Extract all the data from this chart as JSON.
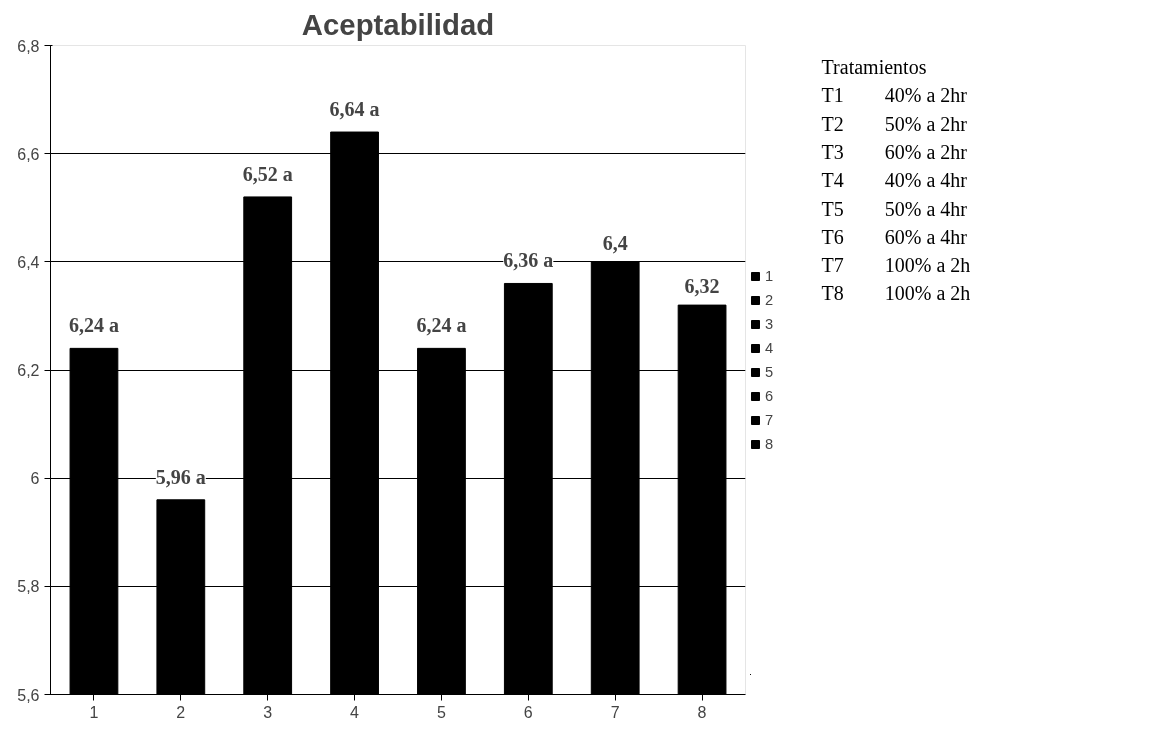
{
  "chart_data": {
    "type": "bar",
    "title": "Aceptabilidad",
    "categories": [
      "1",
      "2",
      "3",
      "4",
      "5",
      "6",
      "7",
      "8"
    ],
    "series": [
      {
        "name": "1",
        "color": "#000000",
        "values": [
          6.24,
          null,
          null,
          null,
          null,
          null,
          null,
          null
        ],
        "value_labels": [
          "6,24 a",
          null,
          null,
          null,
          null,
          null,
          null,
          null
        ]
      },
      {
        "name": "2",
        "color": "#000000",
        "values": [
          null,
          5.96,
          null,
          null,
          null,
          null,
          null,
          null
        ],
        "value_labels": [
          null,
          "5,96 a",
          null,
          null,
          null,
          null,
          null,
          null
        ]
      },
      {
        "name": "3",
        "color": "#000000",
        "values": [
          null,
          null,
          6.52,
          null,
          null,
          null,
          null,
          null
        ],
        "value_labels": [
          null,
          null,
          "6,52 a",
          null,
          null,
          null,
          null,
          null
        ]
      },
      {
        "name": "4",
        "color": "#000000",
        "values": [
          null,
          null,
          null,
          6.64,
          null,
          null,
          null,
          null
        ],
        "value_labels": [
          null,
          null,
          null,
          "6,64 a",
          null,
          null,
          null,
          null
        ]
      },
      {
        "name": "5",
        "color": "#000000",
        "values": [
          null,
          null,
          null,
          null,
          6.24,
          null,
          null,
          null
        ],
        "value_labels": [
          null,
          null,
          null,
          null,
          "6,24 a",
          null,
          null,
          null
        ]
      },
      {
        "name": "6",
        "color": "#000000",
        "values": [
          null,
          null,
          null,
          null,
          null,
          6.36,
          null,
          null
        ],
        "value_labels": [
          null,
          null,
          null,
          null,
          null,
          "6,36 a",
          null,
          null
        ]
      },
      {
        "name": "7",
        "color": "#000000",
        "values": [
          null,
          null,
          null,
          null,
          null,
          null,
          6.4,
          null
        ],
        "value_labels": [
          null,
          null,
          null,
          null,
          null,
          null,
          "6,4",
          null
        ]
      },
      {
        "name": "8",
        "color": "#000000",
        "values": [
          null,
          null,
          null,
          null,
          null,
          null,
          null,
          6.32
        ],
        "value_labels": [
          null,
          null,
          null,
          null,
          null,
          null,
          null,
          "6,32"
        ]
      }
    ],
    "ylim": [
      5.6,
      6.8
    ],
    "yticks": [
      {
        "value": 5.6,
        "label": "5,6"
      },
      {
        "value": 5.8,
        "label": "5,8"
      },
      6,
      {
        "value": 6.2,
        "label": "6,2"
      },
      {
        "value": 6.4,
        "label": "6,4"
      },
      {
        "value": 6.6,
        "label": "6,6"
      },
      {
        "value": 6.8,
        "label": "6,8"
      }
    ],
    "grid": "y",
    "legend": "right",
    "annotations": [
      "Tratamientos",
      "T1",
      "40% a 2hr",
      "T2",
      "50% a 2hr",
      "T3",
      "60% a 2hr",
      "T4",
      "40% a 4hr",
      "T5",
      "50% a 4hr",
      "T6",
      "60% a 4hr",
      "T7",
      "100% a 2h",
      "T8",
      "100% a 2h"
    ]
  }
}
